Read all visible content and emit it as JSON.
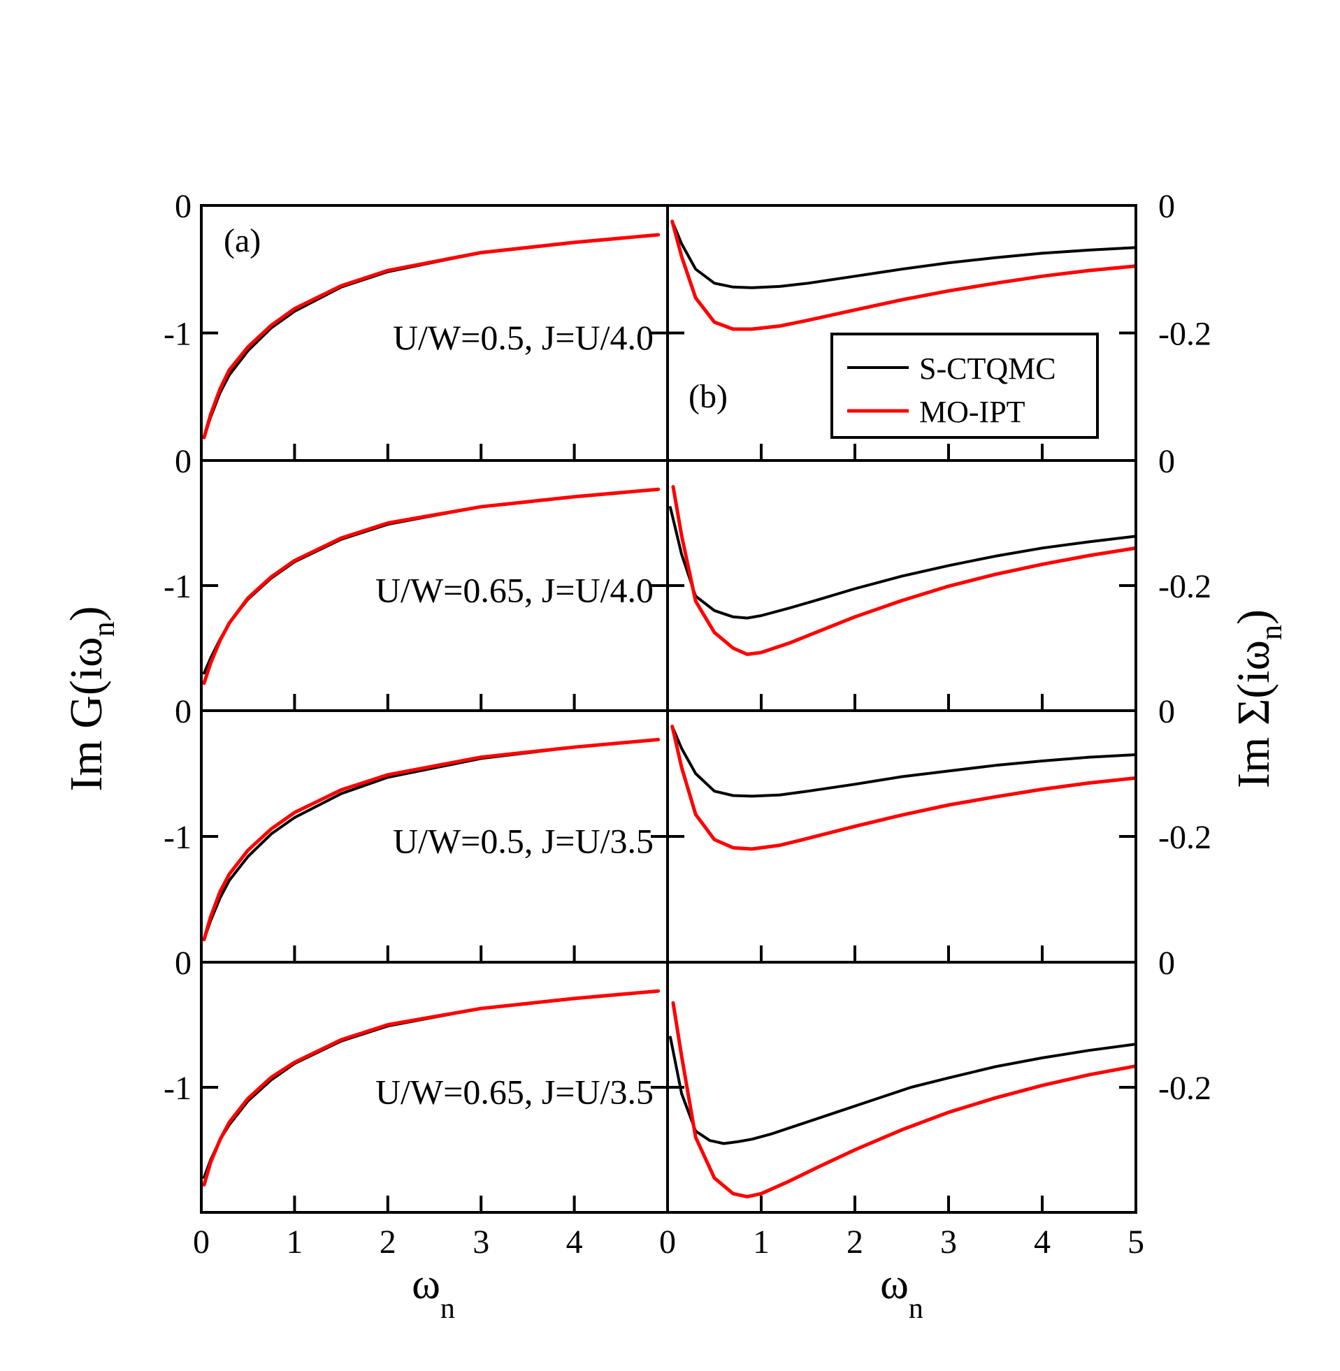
{
  "figure": {
    "panel_a_label": "(a)",
    "panel_b_label": "(b)",
    "left_ylabel_main": "Im G(iω",
    "left_ylabel_sub": "n",
    "left_ylabel_close": ")",
    "right_ylabel_main": "Im Σ(iω",
    "right_ylabel_sub": "n",
    "right_ylabel_close": ")",
    "xlabel_main": "ω",
    "xlabel_sub": "n",
    "colors": {
      "qmc": "#000000",
      "ipt": "#ff0000",
      "axis": "#000000"
    }
  },
  "legend": {
    "entries": [
      {
        "label": "S-CTQMC",
        "color": "#000000"
      },
      {
        "label": "MO-IPT",
        "color": "#ff0000"
      }
    ]
  },
  "chart_data": [
    {
      "type": "line",
      "panel": "left",
      "row": 1,
      "annotation": "U/W=0.5, J=U/4.0",
      "xlim": [
        0,
        5
      ],
      "ylim": [
        -2,
        0
      ],
      "x_ticks": [
        0,
        1,
        2,
        3,
        4
      ],
      "y_tick_labels": [
        {
          "value": 0,
          "label": "0"
        },
        {
          "value": -1,
          "label": "-1"
        }
      ],
      "series": [
        {
          "name": "S-CTQMC",
          "x": [
            0.03,
            0.1,
            0.2,
            0.3,
            0.5,
            0.75,
            1.0,
            1.5,
            2.0,
            3.0,
            4.0,
            4.9
          ],
          "y": [
            -1.82,
            -1.66,
            -1.47,
            -1.33,
            -1.14,
            -0.96,
            -0.83,
            -0.64,
            -0.52,
            -0.37,
            -0.29,
            -0.23
          ]
        },
        {
          "name": "MO-IPT",
          "x": [
            0.03,
            0.1,
            0.2,
            0.3,
            0.5,
            0.75,
            1.0,
            1.5,
            2.0,
            3.0,
            4.0,
            4.9
          ],
          "y": [
            -1.82,
            -1.64,
            -1.44,
            -1.29,
            -1.11,
            -0.94,
            -0.81,
            -0.63,
            -0.51,
            -0.37,
            -0.29,
            -0.23
          ]
        }
      ]
    },
    {
      "type": "line",
      "panel": "right",
      "row": 1,
      "xlim": [
        0,
        5
      ],
      "ylim": [
        -0.4,
        0
      ],
      "x_ticks": [
        0,
        1,
        2,
        3,
        4,
        5
      ],
      "y_tick_labels": [
        {
          "value": 0,
          "label": "0"
        },
        {
          "value": -0.2,
          "label": "-0.2"
        }
      ],
      "series": [
        {
          "name": "S-CTQMC",
          "x": [
            0.05,
            0.15,
            0.3,
            0.5,
            0.7,
            0.9,
            1.2,
            1.5,
            2.0,
            2.5,
            3.0,
            3.5,
            4.0,
            4.5,
            5.0
          ],
          "y": [
            -0.025,
            -0.06,
            -0.1,
            -0.122,
            -0.128,
            -0.129,
            -0.127,
            -0.122,
            -0.111,
            -0.1,
            -0.09,
            -0.082,
            -0.075,
            -0.07,
            -0.066
          ]
        },
        {
          "name": "MO-IPT",
          "x": [
            0.05,
            0.15,
            0.3,
            0.5,
            0.7,
            0.9,
            1.2,
            1.5,
            2.0,
            2.5,
            3.0,
            3.5,
            4.0,
            4.5,
            5.0
          ],
          "y": [
            -0.025,
            -0.08,
            -0.145,
            -0.183,
            -0.194,
            -0.194,
            -0.189,
            -0.18,
            -0.164,
            -0.148,
            -0.134,
            -0.122,
            -0.111,
            -0.102,
            -0.095
          ]
        }
      ]
    },
    {
      "type": "line",
      "panel": "left",
      "row": 2,
      "annotation": "U/W=0.65, J=U/4.0",
      "xlim": [
        0,
        5
      ],
      "ylim": [
        -2,
        0
      ],
      "x_ticks": [
        0,
        1,
        2,
        3,
        4
      ],
      "y_tick_labels": [
        {
          "value": 0,
          "label": "0"
        },
        {
          "value": -1,
          "label": "-1"
        }
      ],
      "series": [
        {
          "name": "S-CTQMC",
          "x": [
            0.03,
            0.1,
            0.2,
            0.3,
            0.5,
            0.75,
            1.0,
            1.5,
            2.0,
            3.0,
            4.0,
            4.9
          ],
          "y": [
            -1.7,
            -1.58,
            -1.43,
            -1.3,
            -1.11,
            -0.94,
            -0.81,
            -0.63,
            -0.51,
            -0.37,
            -0.29,
            -0.23
          ]
        },
        {
          "name": "MO-IPT",
          "x": [
            0.03,
            0.1,
            0.2,
            0.3,
            0.5,
            0.75,
            1.0,
            1.5,
            2.0,
            3.0,
            4.0,
            4.9
          ],
          "y": [
            -1.78,
            -1.62,
            -1.44,
            -1.3,
            -1.1,
            -0.93,
            -0.8,
            -0.62,
            -0.5,
            -0.37,
            -0.29,
            -0.23
          ]
        }
      ]
    },
    {
      "type": "line",
      "panel": "right",
      "row": 2,
      "xlim": [
        0,
        5
      ],
      "ylim": [
        -0.4,
        0
      ],
      "x_ticks": [
        0,
        1,
        2,
        3,
        4,
        5
      ],
      "y_tick_labels": [
        {
          "value": 0,
          "label": "0"
        },
        {
          "value": -0.2,
          "label": "-0.2"
        }
      ],
      "series": [
        {
          "name": "S-CTQMC",
          "x": [
            0.03,
            0.15,
            0.3,
            0.5,
            0.7,
            0.85,
            1.0,
            1.3,
            1.6,
            2.0,
            2.5,
            3.0,
            3.5,
            4.0,
            4.5,
            5.0
          ],
          "y": [
            -0.075,
            -0.15,
            -0.217,
            -0.24,
            -0.25,
            -0.252,
            -0.248,
            -0.236,
            -0.223,
            -0.205,
            -0.185,
            -0.168,
            -0.153,
            -0.14,
            -0.13,
            -0.121
          ]
        },
        {
          "name": "MO-IPT",
          "x": [
            0.06,
            0.15,
            0.3,
            0.5,
            0.7,
            0.85,
            1.0,
            1.3,
            1.6,
            2.0,
            2.5,
            3.0,
            3.5,
            4.0,
            4.5,
            5.0
          ],
          "y": [
            -0.042,
            -0.12,
            -0.225,
            -0.275,
            -0.3,
            -0.31,
            -0.307,
            -0.292,
            -0.274,
            -0.25,
            -0.224,
            -0.201,
            -0.182,
            -0.166,
            -0.152,
            -0.14
          ]
        }
      ]
    },
    {
      "type": "line",
      "panel": "left",
      "row": 3,
      "annotation": "U/W=0.5, J=U/3.5",
      "xlim": [
        0,
        5
      ],
      "ylim": [
        -2,
        0
      ],
      "x_ticks": [
        0,
        1,
        2,
        3,
        4
      ],
      "y_tick_labels": [
        {
          "value": 0,
          "label": "0"
        },
        {
          "value": -1,
          "label": "-1"
        }
      ],
      "series": [
        {
          "name": "S-CTQMC",
          "x": [
            0.03,
            0.1,
            0.2,
            0.3,
            0.5,
            0.75,
            1.0,
            1.5,
            2.0,
            3.0,
            4.0,
            4.9
          ],
          "y": [
            -1.82,
            -1.67,
            -1.49,
            -1.35,
            -1.16,
            -0.98,
            -0.85,
            -0.66,
            -0.53,
            -0.38,
            -0.29,
            -0.23
          ]
        },
        {
          "name": "MO-IPT",
          "x": [
            0.03,
            0.1,
            0.2,
            0.3,
            0.5,
            0.75,
            1.0,
            1.5,
            2.0,
            3.0,
            4.0,
            4.9
          ],
          "y": [
            -1.82,
            -1.64,
            -1.44,
            -1.3,
            -1.11,
            -0.94,
            -0.81,
            -0.63,
            -0.51,
            -0.37,
            -0.29,
            -0.23
          ]
        }
      ]
    },
    {
      "type": "line",
      "panel": "right",
      "row": 3,
      "xlim": [
        0,
        5
      ],
      "ylim": [
        -0.4,
        0
      ],
      "x_ticks": [
        0,
        1,
        2,
        3,
        4,
        5
      ],
      "y_tick_labels": [
        {
          "value": 0,
          "label": "0"
        },
        {
          "value": -0.2,
          "label": "-0.2"
        }
      ],
      "series": [
        {
          "name": "S-CTQMC",
          "x": [
            0.05,
            0.15,
            0.3,
            0.5,
            0.7,
            0.9,
            1.2,
            1.5,
            2.0,
            2.5,
            3.0,
            3.5,
            4.0,
            4.5,
            5.0
          ],
          "y": [
            -0.025,
            -0.06,
            -0.1,
            -0.128,
            -0.135,
            -0.136,
            -0.134,
            -0.128,
            -0.117,
            -0.105,
            -0.096,
            -0.087,
            -0.08,
            -0.074,
            -0.07
          ]
        },
        {
          "name": "MO-IPT",
          "x": [
            0.05,
            0.15,
            0.3,
            0.5,
            0.7,
            0.9,
            1.2,
            1.5,
            2.0,
            2.5,
            3.0,
            3.5,
            4.0,
            4.5,
            5.0
          ],
          "y": [
            -0.025,
            -0.09,
            -0.165,
            -0.205,
            -0.218,
            -0.22,
            -0.214,
            -0.203,
            -0.184,
            -0.166,
            -0.15,
            -0.137,
            -0.125,
            -0.115,
            -0.107
          ]
        }
      ]
    },
    {
      "type": "line",
      "panel": "left",
      "row": 4,
      "annotation": "U/W=0.65, J=U/3.5",
      "xlim": [
        0,
        5
      ],
      "ylim": [
        -2,
        0
      ],
      "x_ticks": [
        0,
        1,
        2,
        3,
        4,
        5
      ],
      "x_tick_labels": [
        "0",
        "1",
        "2",
        "3",
        "4"
      ],
      "y_tick_labels": [
        {
          "value": 0,
          "label": "0"
        },
        {
          "value": -1,
          "label": "-1"
        }
      ],
      "series": [
        {
          "name": "S-CTQMC",
          "x": [
            0.03,
            0.1,
            0.2,
            0.3,
            0.5,
            0.75,
            1.0,
            1.5,
            2.0,
            3.0,
            4.0,
            4.9
          ],
          "y": [
            -1.72,
            -1.58,
            -1.42,
            -1.3,
            -1.11,
            -0.94,
            -0.81,
            -0.63,
            -0.51,
            -0.37,
            -0.29,
            -0.23
          ]
        },
        {
          "name": "MO-IPT",
          "x": [
            0.03,
            0.1,
            0.2,
            0.3,
            0.5,
            0.75,
            1.0,
            1.5,
            2.0,
            3.0,
            4.0,
            4.9
          ],
          "y": [
            -1.78,
            -1.6,
            -1.42,
            -1.28,
            -1.09,
            -0.92,
            -0.8,
            -0.62,
            -0.5,
            -0.37,
            -0.29,
            -0.23
          ]
        }
      ]
    },
    {
      "type": "line",
      "panel": "right",
      "row": 4,
      "xlim": [
        0,
        5
      ],
      "ylim": [
        -0.4,
        0
      ],
      "x_ticks": [
        0,
        1,
        2,
        3,
        4,
        5
      ],
      "x_tick_labels": [
        "0",
        "1",
        "2",
        "3",
        "4",
        "5"
      ],
      "y_tick_labels": [
        {
          "value": 0,
          "label": "0"
        },
        {
          "value": -0.2,
          "label": "-0.2"
        }
      ],
      "series": [
        {
          "name": "S-CTQMC",
          "x": [
            0.03,
            0.15,
            0.3,
            0.45,
            0.6,
            0.75,
            0.9,
            1.1,
            1.4,
            1.8,
            2.2,
            2.6,
            3.0,
            3.5,
            4.0,
            4.5,
            5.0
          ],
          "y": [
            -0.12,
            -0.21,
            -0.27,
            -0.285,
            -0.29,
            -0.287,
            -0.283,
            -0.275,
            -0.26,
            -0.24,
            -0.22,
            -0.2,
            -0.185,
            -0.167,
            -0.153,
            -0.141,
            -0.131
          ]
        },
        {
          "name": "MO-IPT",
          "x": [
            0.06,
            0.15,
            0.3,
            0.5,
            0.7,
            0.85,
            1.0,
            1.3,
            1.6,
            2.0,
            2.5,
            3.0,
            3.5,
            4.0,
            4.5,
            5.0
          ],
          "y": [
            -0.065,
            -0.15,
            -0.28,
            -0.345,
            -0.37,
            -0.375,
            -0.37,
            -0.35,
            -0.328,
            -0.3,
            -0.268,
            -0.24,
            -0.217,
            -0.197,
            -0.18,
            -0.166
          ]
        }
      ]
    }
  ]
}
